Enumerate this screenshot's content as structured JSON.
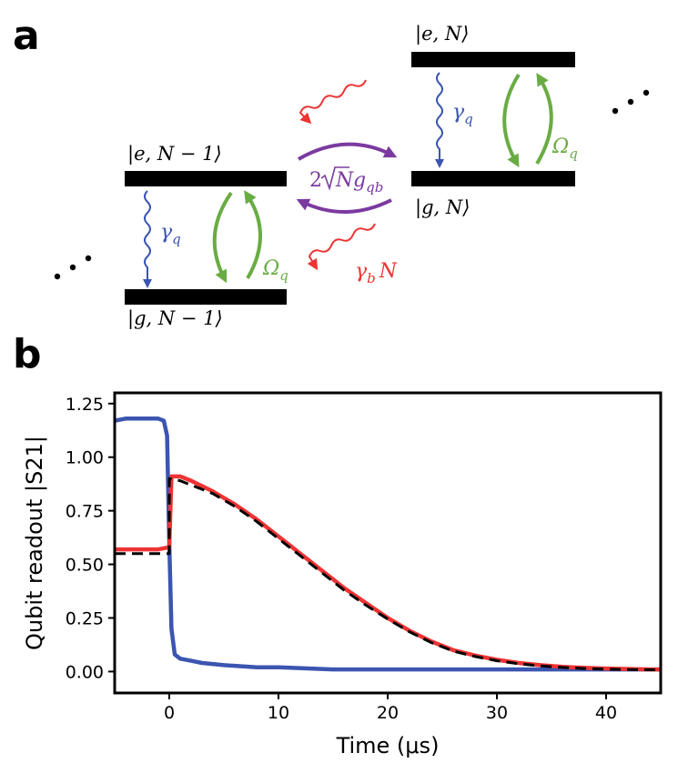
{
  "panels": {
    "a": "a",
    "b": "b"
  },
  "diagram": {
    "levels": {
      "e_N": "|e, N⟩",
      "g_N": "|g, N⟩",
      "e_N_minus_1": "|e, N − 1⟩",
      "g_N_minus_1": "|g, N − 1⟩"
    },
    "symbols": {
      "gamma_q_left": "γ",
      "gamma_q_left_sub": "q",
      "gamma_q_right": "γ",
      "gamma_q_right_sub": "q",
      "omega_q_left": "Ω",
      "omega_q_left_sub": "q",
      "omega_q_right": "Ω",
      "omega_q_right_sub": "q",
      "coupling_prefix": "2",
      "coupling_radicand": "N",
      "coupling_g": "g",
      "coupling_sub": "qb",
      "gamma_b": "γ",
      "gamma_b_sub": "b",
      "gamma_b_N": "N"
    },
    "ellipsis_left": "⋯",
    "ellipsis_right": "⋯",
    "colors": {
      "decay": "#3b55b0",
      "drive": "#6aac44",
      "coupling": "#7b3aa0",
      "photon": "#ee3333",
      "level": "#000000"
    }
  },
  "chart_data": {
    "type": "line",
    "xlabel": "Time (μs)",
    "ylabel": "Qubit readout |S21|",
    "xlim": [
      -5,
      45
    ],
    "ylim": [
      -0.1,
      1.3
    ],
    "xticks": [
      0,
      10,
      20,
      30,
      40
    ],
    "yticks": [
      0.0,
      0.25,
      0.5,
      0.75,
      1.0,
      1.25
    ],
    "xtick_labels": [
      "0",
      "10",
      "20",
      "30",
      "40"
    ],
    "ytick_labels": [
      "0.00",
      "0.25",
      "0.50",
      "0.75",
      "1.00",
      "1.25"
    ],
    "grid": false,
    "series": [
      {
        "color": "#3b55b0",
        "style": "solid",
        "x": [
          -5,
          -4,
          -3,
          -2,
          -1,
          -0.5,
          -0.2,
          0,
          0.2,
          0.5,
          1,
          2,
          3,
          5,
          8,
          10,
          15,
          20,
          25,
          30,
          35,
          40,
          45
        ],
        "y": [
          1.17,
          1.18,
          1.18,
          1.18,
          1.18,
          1.17,
          1.1,
          0.6,
          0.2,
          0.08,
          0.06,
          0.05,
          0.04,
          0.03,
          0.02,
          0.02,
          0.01,
          0.01,
          0.01,
          0.01,
          0.01,
          0.01,
          0.01
        ]
      },
      {
        "color": "#ee3333",
        "style": "solid",
        "x": [
          -5,
          -4,
          -3,
          -2,
          -1,
          0,
          0.2,
          0.5,
          1,
          2,
          4,
          6,
          8,
          10,
          12,
          14,
          16,
          18,
          20,
          22,
          24,
          26,
          28,
          30,
          32,
          34,
          36,
          38,
          40,
          42,
          44,
          45
        ],
        "y": [
          0.57,
          0.57,
          0.57,
          0.57,
          0.57,
          0.58,
          0.91,
          0.91,
          0.91,
          0.89,
          0.84,
          0.78,
          0.71,
          0.63,
          0.55,
          0.47,
          0.39,
          0.32,
          0.25,
          0.19,
          0.14,
          0.1,
          0.075,
          0.055,
          0.04,
          0.03,
          0.022,
          0.017,
          0.014,
          0.012,
          0.01,
          0.01
        ]
      },
      {
        "color": "#000000",
        "style": "dashed",
        "x": [
          -5,
          -4,
          -3,
          -2,
          -1,
          0,
          0.01,
          0.5,
          1,
          2,
          4,
          6,
          8,
          10,
          12,
          14,
          16,
          18,
          20,
          22,
          24,
          26,
          28,
          30,
          32,
          34,
          36,
          38,
          40,
          42,
          44,
          45
        ],
        "y": [
          0.55,
          0.55,
          0.55,
          0.55,
          0.55,
          0.55,
          0.9,
          0.895,
          0.89,
          0.87,
          0.83,
          0.77,
          0.7,
          0.62,
          0.54,
          0.46,
          0.38,
          0.31,
          0.245,
          0.185,
          0.135,
          0.095,
          0.07,
          0.05,
          0.036,
          0.026,
          0.019,
          0.014,
          0.011,
          0.009,
          0.008,
          0.008
        ]
      }
    ]
  }
}
